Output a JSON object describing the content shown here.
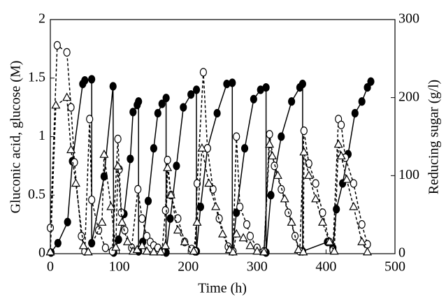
{
  "chart_data": {
    "type": "line",
    "xlabel": "Time (h)",
    "ylabel": "Gluconic acid, glucose (M)",
    "y2label": "Reducing sugar (g/l)",
    "xlim": [
      0,
      500
    ],
    "xticks": [
      0,
      100,
      200,
      300,
      400,
      500
    ],
    "ylim": [
      0,
      2
    ],
    "yticks": [
      0,
      0.5,
      1,
      1.5,
      2
    ],
    "y2lim": [
      0,
      300
    ],
    "y2ticks": [
      0,
      100,
      200,
      300
    ],
    "series": [
      {
        "color": "#000000",
        "marker": "filled-circle",
        "dashed": false,
        "x": [
          1,
          11,
          25,
          32,
          47,
          50,
          60,
          60,
          78,
          91,
          92,
          99,
          107,
          116,
          120,
          126,
          128,
          128,
          134,
          142,
          150,
          156,
          162,
          168,
          168,
          174,
          183,
          193,
          204,
          212,
          212,
          218,
          228,
          242,
          256,
          264,
          264,
          270,
          282,
          295,
          305,
          313,
          313,
          320,
          335,
          350,
          362,
          366,
          366,
          402,
          410,
          415,
          424,
          432,
          442,
          452,
          460,
          465
        ],
        "values": [
          0.01,
          0.09,
          0.27,
          0.79,
          1.45,
          1.48,
          1.49,
          0.09,
          0.66,
          1.43,
          0.01,
          0.12,
          0.34,
          0.81,
          1.21,
          1.27,
          1.3,
          0.02,
          0.1,
          0.45,
          0.9,
          1.2,
          1.28,
          1.33,
          0.01,
          0.3,
          0.75,
          1.25,
          1.36,
          1.4,
          0.02,
          0.4,
          0.9,
          1.2,
          1.45,
          1.46,
          0.02,
          0.35,
          0.9,
          1.32,
          1.4,
          1.42,
          0.01,
          0.5,
          1.0,
          1.3,
          1.42,
          1.45,
          0.02,
          0.1,
          0.05,
          0.38,
          0.6,
          0.85,
          1.2,
          1.3,
          1.42,
          1.47
        ]
      },
      {
        "color": "#000000",
        "marker": "open-circle",
        "dashed": true,
        "x": [
          0,
          10,
          24,
          30,
          35,
          45,
          50,
          57,
          60,
          70,
          80,
          90,
          98,
          100,
          103,
          108,
          118,
          127,
          133,
          140,
          145,
          150,
          156,
          162,
          167,
          170,
          175,
          185,
          195,
          205,
          210,
          213,
          222,
          228,
          236,
          245,
          258,
          265,
          270,
          275,
          285,
          290,
          300,
          310,
          318,
          325,
          335,
          345,
          355,
          362,
          368,
          375,
          385,
          395,
          405,
          410,
          418,
          422,
          428,
          440,
          452,
          460
        ],
        "values": [
          0.22,
          1.78,
          1.72,
          1.25,
          0.78,
          0.15,
          0.02,
          1.15,
          0.46,
          0.2,
          0.05,
          0.02,
          0.98,
          0.72,
          0.35,
          0.2,
          0.05,
          0.55,
          0.3,
          0.15,
          0.1,
          0.07,
          0.05,
          0.02,
          0.37,
          0.8,
          0.5,
          0.3,
          0.1,
          0.04,
          0.02,
          0.6,
          1.55,
          0.9,
          0.55,
          0.3,
          0.06,
          0.02,
          1.0,
          0.4,
          0.25,
          0.15,
          0.05,
          0.02,
          1.02,
          0.75,
          0.55,
          0.35,
          0.15,
          0.02,
          1.05,
          0.77,
          0.6,
          0.35,
          0.1,
          0.03,
          1.15,
          1.1,
          0.82,
          0.6,
          0.25,
          0.08
        ]
      },
      {
        "color": "#000000",
        "marker": "open-triangle",
        "dashed": true,
        "axis": "y2",
        "x": [
          0,
          8,
          24,
          30,
          37,
          48,
          55,
          75,
          78,
          88,
          95,
          98,
          104,
          112,
          120,
          126,
          133,
          140,
          150,
          160,
          167,
          170,
          175,
          185,
          195,
          208,
          213,
          220,
          230,
          240,
          250,
          260,
          265,
          270,
          280,
          290,
          300,
          310,
          318,
          322,
          330,
          340,
          350,
          360,
          367,
          368,
          375,
          385,
          395,
          405,
          412,
          418,
          422,
          430,
          440,
          452,
          460
        ],
        "values": [
          2,
          190,
          200,
          133,
          90,
          10,
          2,
          40,
          127,
          60,
          8,
          112,
          40,
          15,
          3,
          5,
          10,
          3,
          2,
          2,
          10,
          110,
          75,
          30,
          15,
          3,
          40,
          135,
          90,
          60,
          25,
          5,
          2,
          25,
          20,
          10,
          3,
          2,
          140,
          125,
          100,
          70,
          40,
          5,
          2,
          130,
          100,
          70,
          40,
          15,
          3,
          140,
          125,
          95,
          60,
          15,
          2
        ]
      }
    ]
  }
}
